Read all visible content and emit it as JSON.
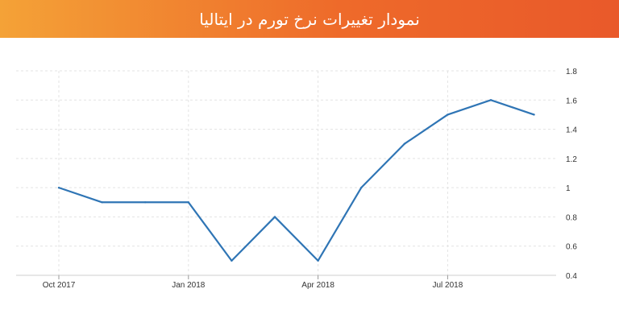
{
  "header": {
    "title": "نمودار تغییرات نرخ تورم در ایتالیا"
  },
  "colors": {
    "banner_start": "#f4a237",
    "banner_end": "#e9592a",
    "line": "#2f75b5",
    "grid": "#e3e3e3"
  },
  "chart_data": {
    "type": "line",
    "title": "",
    "xlabel": "",
    "ylabel": "",
    "x": [
      "Oct 2017",
      "Nov 2017",
      "Dec 2017",
      "Jan 2018",
      "Feb 2018",
      "Mar 2018",
      "Apr 2018",
      "May 2018",
      "Jun 2018",
      "Jul 2018",
      "Aug 2018",
      "Sep 2018"
    ],
    "series": [
      {
        "values": [
          1.0,
          0.9,
          0.9,
          0.9,
          0.5,
          0.8,
          0.5,
          1.0,
          1.3,
          1.5,
          1.6,
          1.5
        ]
      }
    ],
    "xtick_labels": [
      "Oct 2017",
      "Jan 2018",
      "Apr 2018",
      "Jul 2018"
    ],
    "yticks": [
      "0.4",
      "0.6",
      "0.8",
      "1",
      "1.2",
      "1.4",
      "1.6",
      "1.8"
    ],
    "ylim": [
      0.4,
      1.8
    ],
    "y_axis_position": "right",
    "grid": true
  }
}
